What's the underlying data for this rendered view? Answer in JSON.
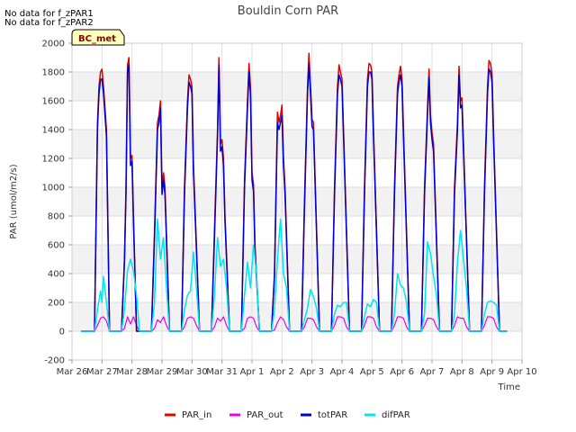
{
  "notes": [
    "No data for f_zPAR1",
    "No data for f_zPAR2"
  ],
  "badge": "BC_met",
  "chart_data": {
    "type": "line",
    "title": "Bouldin Corn PAR",
    "xlabel": "Time",
    "ylabel": "PAR (umol/m2/s)",
    "xlim": [
      0,
      15
    ],
    "ylim": [
      -200,
      2000
    ],
    "x_ticks": [
      {
        "v": 0,
        "label": "Mar 26"
      },
      {
        "v": 1,
        "label": "Mar 27"
      },
      {
        "v": 2,
        "label": "Mar 28"
      },
      {
        "v": 3,
        "label": "Mar 29"
      },
      {
        "v": 4,
        "label": "Mar 30"
      },
      {
        "v": 5,
        "label": "Mar 31"
      },
      {
        "v": 6,
        "label": "Apr 1"
      },
      {
        "v": 7,
        "label": "Apr 2"
      },
      {
        "v": 8,
        "label": "Apr 3"
      },
      {
        "v": 9,
        "label": "Apr 4"
      },
      {
        "v": 10,
        "label": "Apr 5"
      },
      {
        "v": 11,
        "label": "Apr 6"
      },
      {
        "v": 12,
        "label": "Apr 7"
      },
      {
        "v": 13,
        "label": "Apr 8"
      },
      {
        "v": 14,
        "label": "Apr 9"
      },
      {
        "v": 15,
        "label": "Apr 10"
      }
    ],
    "y_ticks": [
      -200,
      0,
      200,
      400,
      600,
      800,
      1000,
      1200,
      1400,
      1600,
      1800,
      2000
    ],
    "x_units": "days since Mar 26 00:00",
    "series": [
      {
        "name": "PAR_in",
        "color": "#dd0000",
        "width": 1.5,
        "x": [
          0.3,
          0.75,
          0.85,
          0.9,
          0.95,
          1.0,
          1.05,
          1.15,
          1.25,
          1.65,
          1.75,
          1.8,
          1.85,
          1.9,
          1.95,
          2.0,
          2.05,
          2.15,
          2.25,
          2.65,
          2.75,
          2.85,
          2.9,
          2.95,
          3.0,
          3.05,
          3.1,
          3.25,
          3.65,
          3.75,
          3.85,
          3.9,
          3.95,
          4.0,
          4.05,
          4.25,
          4.65,
          4.75,
          4.85,
          4.9,
          4.95,
          5.0,
          5.05,
          5.1,
          5.25,
          5.65,
          5.75,
          5.85,
          5.9,
          5.95,
          6.0,
          6.05,
          6.1,
          6.25,
          6.65,
          6.75,
          6.85,
          6.9,
          6.95,
          7.0,
          7.05,
          7.1,
          7.25,
          7.65,
          7.75,
          7.85,
          7.9,
          7.95,
          8.0,
          8.05,
          8.25,
          8.65,
          8.75,
          8.85,
          8.9,
          8.95,
          9.0,
          9.05,
          9.25,
          9.65,
          9.75,
          9.85,
          9.9,
          9.95,
          10.0,
          10.05,
          10.25,
          10.65,
          10.75,
          10.85,
          10.9,
          10.95,
          11.0,
          11.05,
          11.25,
          11.65,
          11.75,
          11.85,
          11.9,
          11.95,
          12.0,
          12.05,
          12.25,
          12.65,
          12.75,
          12.85,
          12.9,
          12.95,
          13.0,
          13.05,
          13.25,
          13.65,
          13.75,
          13.85,
          13.9,
          13.95,
          14.0,
          14.05,
          14.25,
          14.5
        ],
        "y": [
          0,
          0,
          1450,
          1700,
          1800,
          1820,
          1700,
          1400,
          0,
          0,
          500,
          1000,
          1850,
          1900,
          1200,
          1220,
          800,
          0,
          0,
          0,
          700,
          1450,
          1500,
          1600,
          1000,
          1100,
          1000,
          0,
          0,
          1000,
          1600,
          1780,
          1750,
          1700,
          1150,
          0,
          0,
          700,
          1400,
          1900,
          1300,
          1330,
          1200,
          800,
          0,
          0,
          1050,
          1600,
          1860,
          1700,
          1100,
          1020,
          600,
          0,
          0,
          400,
          1520,
          1450,
          1500,
          1570,
          1200,
          1000,
          0,
          0,
          900,
          1700,
          1930,
          1700,
          1470,
          1450,
          0,
          0,
          1000,
          1700,
          1850,
          1800,
          1750,
          1400,
          0,
          0,
          1000,
          1750,
          1860,
          1850,
          1800,
          1400,
          0,
          0,
          1000,
          1700,
          1780,
          1840,
          1750,
          1400,
          0,
          0,
          1000,
          1550,
          1820,
          1500,
          1380,
          1300,
          0,
          0,
          1000,
          1450,
          1840,
          1600,
          1620,
          1300,
          0,
          0,
          1000,
          1700,
          1880,
          1860,
          1780,
          1400,
          0,
          0
        ]
      },
      {
        "name": "PAR_out",
        "color": "#ee00ee",
        "width": 1.2,
        "x": [
          0.3,
          0.75,
          0.85,
          0.95,
          1.05,
          1.15,
          1.25,
          1.65,
          1.75,
          1.85,
          1.95,
          2.05,
          2.15,
          2.25,
          2.65,
          2.75,
          2.85,
          2.95,
          3.05,
          3.15,
          3.25,
          3.65,
          3.75,
          3.85,
          3.95,
          4.05,
          4.15,
          4.25,
          4.65,
          4.75,
          4.85,
          4.95,
          5.05,
          5.15,
          5.25,
          5.65,
          5.75,
          5.85,
          5.95,
          6.05,
          6.15,
          6.25,
          6.65,
          6.75,
          6.85,
          6.95,
          7.05,
          7.15,
          7.25,
          7.65,
          7.75,
          7.85,
          7.95,
          8.05,
          8.15,
          8.25,
          8.65,
          8.75,
          8.85,
          8.95,
          9.05,
          9.15,
          9.25,
          9.65,
          9.75,
          9.85,
          9.95,
          10.05,
          10.15,
          10.25,
          10.65,
          10.75,
          10.85,
          10.95,
          11.05,
          11.15,
          11.25,
          11.65,
          11.75,
          11.85,
          11.95,
          12.05,
          12.15,
          12.25,
          12.65,
          12.75,
          12.85,
          12.95,
          13.05,
          13.15,
          13.25,
          13.65,
          13.75,
          13.85,
          13.95,
          14.05,
          14.15,
          14.25,
          14.5
        ],
        "y": [
          0,
          0,
          40,
          90,
          100,
          70,
          0,
          0,
          20,
          100,
          50,
          100,
          40,
          0,
          0,
          20,
          80,
          60,
          100,
          40,
          0,
          0,
          30,
          90,
          100,
          90,
          40,
          0,
          0,
          30,
          90,
          70,
          100,
          40,
          0,
          0,
          20,
          90,
          100,
          90,
          30,
          0,
          0,
          10,
          60,
          100,
          80,
          30,
          0,
          0,
          30,
          90,
          90,
          80,
          30,
          0,
          0,
          40,
          100,
          100,
          90,
          30,
          0,
          0,
          40,
          100,
          100,
          90,
          30,
          0,
          0,
          40,
          100,
          100,
          90,
          30,
          0,
          0,
          40,
          90,
          90,
          80,
          30,
          0,
          0,
          40,
          100,
          90,
          90,
          30,
          0,
          0,
          40,
          100,
          100,
          90,
          30,
          0,
          0
        ]
      },
      {
        "name": "totPAR",
        "color": "#0000cc",
        "width": 1.5,
        "x": [
          0.3,
          0.75,
          0.85,
          0.9,
          0.95,
          1.0,
          1.05,
          1.15,
          1.25,
          1.65,
          1.75,
          1.8,
          1.85,
          1.9,
          1.95,
          2.0,
          2.05,
          2.15,
          2.25,
          2.65,
          2.75,
          2.85,
          2.9,
          2.95,
          3.0,
          3.05,
          3.1,
          3.25,
          3.65,
          3.75,
          3.85,
          3.9,
          3.95,
          4.0,
          4.05,
          4.25,
          4.65,
          4.75,
          4.85,
          4.9,
          4.95,
          5.0,
          5.05,
          5.1,
          5.25,
          5.65,
          5.75,
          5.85,
          5.9,
          5.95,
          6.0,
          6.05,
          6.1,
          6.25,
          6.65,
          6.75,
          6.85,
          6.9,
          6.95,
          7.0,
          7.05,
          7.1,
          7.25,
          7.65,
          7.75,
          7.85,
          7.9,
          7.95,
          8.0,
          8.05,
          8.25,
          8.65,
          8.75,
          8.85,
          8.9,
          8.95,
          9.0,
          9.05,
          9.25,
          9.65,
          9.75,
          9.85,
          9.9,
          9.95,
          10.0,
          10.05,
          10.25,
          10.65,
          10.75,
          10.85,
          10.9,
          10.95,
          11.0,
          11.05,
          11.25,
          11.65,
          11.75,
          11.85,
          11.9,
          11.95,
          12.0,
          12.05,
          12.25,
          12.65,
          12.75,
          12.85,
          12.9,
          12.95,
          13.0,
          13.05,
          13.25,
          13.65,
          13.75,
          13.85,
          13.9,
          13.95,
          14.0,
          14.05,
          14.25,
          14.5
        ],
        "y": [
          0,
          0,
          1400,
          1650,
          1750,
          1750,
          1650,
          1350,
          0,
          0,
          480,
          950,
          1800,
          1850,
          1150,
          1180,
          760,
          0,
          0,
          0,
          650,
          1400,
          1450,
          1550,
          950,
          1050,
          950,
          0,
          0,
          950,
          1550,
          1730,
          1700,
          1650,
          1100,
          0,
          0,
          650,
          1350,
          1850,
          1250,
          1280,
          1150,
          760,
          0,
          0,
          1000,
          1550,
          1800,
          1650,
          1050,
          970,
          560,
          0,
          0,
          380,
          1450,
          1400,
          1450,
          1500,
          1150,
          950,
          0,
          0,
          850,
          1650,
          1860,
          1650,
          1420,
          1400,
          0,
          0,
          950,
          1650,
          1780,
          1750,
          1700,
          1350,
          0,
          0,
          950,
          1700,
          1800,
          1800,
          1750,
          1350,
          0,
          0,
          950,
          1650,
          1730,
          1780,
          1700,
          1350,
          0,
          0,
          950,
          1500,
          1760,
          1450,
          1330,
          1250,
          0,
          0,
          950,
          1400,
          1780,
          1550,
          1570,
          1250,
          0,
          0,
          950,
          1650,
          1820,
          1800,
          1730,
          1350,
          0,
          0
        ]
      },
      {
        "name": "difPAR",
        "color": "#00e5ee",
        "width": 1.5,
        "x": [
          0.3,
          0.75,
          0.85,
          0.95,
          1.0,
          1.05,
          1.15,
          1.25,
          1.65,
          1.75,
          1.85,
          1.95,
          2.05,
          2.15,
          2.25,
          2.65,
          2.75,
          2.85,
          2.95,
          3.05,
          3.15,
          3.25,
          3.65,
          3.75,
          3.85,
          3.95,
          4.05,
          4.15,
          4.25,
          4.65,
          4.75,
          4.85,
          4.95,
          5.05,
          5.15,
          5.25,
          5.65,
          5.75,
          5.85,
          5.95,
          6.05,
          6.15,
          6.25,
          6.65,
          6.75,
          6.85,
          6.95,
          7.05,
          7.15,
          7.25,
          7.65,
          7.75,
          7.85,
          7.95,
          8.05,
          8.15,
          8.25,
          8.65,
          8.75,
          8.85,
          8.95,
          9.05,
          9.15,
          9.25,
          9.65,
          9.75,
          9.85,
          9.95,
          10.05,
          10.15,
          10.25,
          10.65,
          10.75,
          10.85,
          10.95,
          11.05,
          11.15,
          11.25,
          11.65,
          11.75,
          11.85,
          11.95,
          12.05,
          12.15,
          12.25,
          12.65,
          12.75,
          12.85,
          12.95,
          13.05,
          13.15,
          13.25,
          13.65,
          13.75,
          13.85,
          13.95,
          14.05,
          14.15,
          14.25,
          14.5
        ],
        "y": [
          0,
          0,
          150,
          280,
          200,
          380,
          200,
          0,
          0,
          150,
          420,
          500,
          420,
          250,
          0,
          0,
          200,
          780,
          500,
          650,
          300,
          0,
          0,
          150,
          250,
          280,
          550,
          300,
          0,
          0,
          250,
          650,
          450,
          500,
          300,
          0,
          0,
          250,
          480,
          300,
          600,
          400,
          0,
          0,
          150,
          500,
          780,
          400,
          300,
          0,
          0,
          80,
          160,
          290,
          240,
          160,
          0,
          0,
          120,
          180,
          170,
          200,
          200,
          0,
          0,
          100,
          190,
          170,
          220,
          200,
          0,
          0,
          120,
          400,
          320,
          300,
          200,
          0,
          0,
          120,
          620,
          540,
          380,
          250,
          0,
          0,
          120,
          480,
          700,
          500,
          300,
          0,
          0,
          120,
          200,
          210,
          200,
          180,
          0,
          0
        ]
      }
    ]
  }
}
